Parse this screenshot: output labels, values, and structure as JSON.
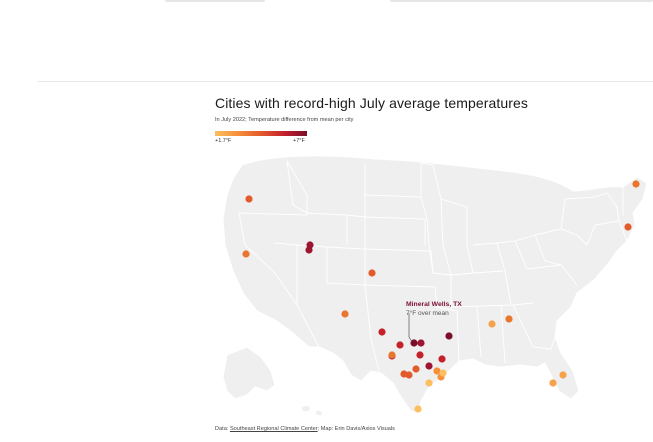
{
  "header": {
    "title": "Cities with record-high July average temperatures",
    "subtitle": "In July 2022; Temperature difference from mean per city"
  },
  "legend": {
    "min_label": "+1.7°F",
    "max_label": "+7°F",
    "colors": [
      "#fbbf5f",
      "#f58f3a",
      "#e35a2c",
      "#c5212b",
      "#7a0e2b"
    ]
  },
  "annotation": {
    "city": "Mineral Wells, TX",
    "value_text": "7°F over mean"
  },
  "source": {
    "prefix": "Data: ",
    "link_text": "Southeast Regional Climate Center",
    "suffix": "; Map: Erin Davis/Axios Visuals"
  },
  "map": {
    "land_color": "#efefef",
    "border_color": "#ffffff",
    "annotation_color": "#7d1131"
  },
  "cities": [
    {
      "color": "#e35a2c"
    },
    {
      "color": "#e8762f"
    },
    {
      "color": "#9d1530"
    },
    {
      "color": "#9d1530"
    },
    {
      "color": "#e35a2c"
    },
    {
      "color": "#e8762f"
    },
    {
      "color": "#c5212b"
    },
    {
      "color": "#7a0e2b"
    },
    {
      "color": "#7a0e2b"
    },
    {
      "color": "#9d1530"
    },
    {
      "color": "#c5212b"
    },
    {
      "color": "#c5212b"
    },
    {
      "color": "#c5212b"
    },
    {
      "color": "#e35a2c"
    },
    {
      "color": "#c5212b"
    },
    {
      "color": "#e35a2c"
    },
    {
      "color": "#e35a2c"
    },
    {
      "color": "#e8762f"
    },
    {
      "color": "#9d1530"
    },
    {
      "color": "#fbbf5f"
    },
    {
      "color": "#f58f3a"
    },
    {
      "color": "#f58f3a"
    },
    {
      "color": "#fbbf5f"
    },
    {
      "color": "#f5a24a"
    },
    {
      "color": "#e8762f"
    },
    {
      "color": "#f5a24a"
    },
    {
      "color": "#f5a24a"
    },
    {
      "color": "#e35a2c"
    },
    {
      "color": "#e8762f"
    },
    {
      "color": "#fbbf5f"
    }
  ]
}
